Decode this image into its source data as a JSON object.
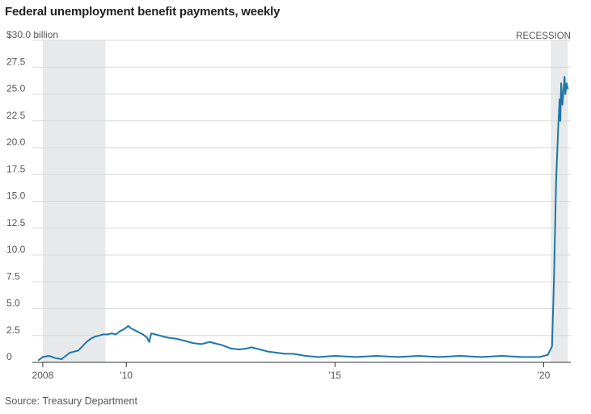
{
  "title": "Federal unemployment benefit payments, weekly",
  "source": "Source: Treasury Department",
  "chart_data": {
    "type": "line",
    "title": "Federal unemployment benefit payments, weekly",
    "unit_label": "$30.0 billion",
    "y_ticks": [
      0,
      2.5,
      5.0,
      7.5,
      10.0,
      12.5,
      15.0,
      17.5,
      20.0,
      22.5,
      25.0,
      27.5,
      30.0
    ],
    "y_tick_labels": [
      "0",
      "2.5",
      "5.0",
      "7.5",
      "10.0",
      "12.5",
      "15.0",
      "17.5",
      "20.0",
      "22.5",
      "25.0",
      "27.5",
      "$30.0 billion"
    ],
    "ylim": [
      0,
      30
    ],
    "xlim": [
      2007.75,
      2020.65
    ],
    "x_ticks": [
      2008,
      2010,
      2015,
      2020
    ],
    "x_tick_labels": [
      "2008",
      "'10",
      "'15",
      "'20"
    ],
    "grid": true,
    "recession_label": "RECESSION",
    "recessions": [
      [
        2008.0,
        2009.5
      ],
      [
        2020.17,
        2020.58
      ]
    ],
    "series": [
      {
        "color": "#1f77a6",
        "x": [
          2007.9,
          2008.0,
          2008.15,
          2008.3,
          2008.45,
          2008.55,
          2008.65,
          2008.75,
          2008.85,
          2008.95,
          2009.05,
          2009.15,
          2009.25,
          2009.35,
          2009.45,
          2009.55,
          2009.65,
          2009.75,
          2009.85,
          2009.95,
          2010.05,
          2010.1,
          2010.2,
          2010.3,
          2010.4,
          2010.5,
          2010.55,
          2010.6,
          2010.7,
          2010.8,
          2010.9,
          2011.0,
          2011.2,
          2011.4,
          2011.6,
          2011.8,
          2012.0,
          2012.1,
          2012.3,
          2012.5,
          2012.7,
          2012.9,
          2013.0,
          2013.2,
          2013.4,
          2013.6,
          2013.8,
          2014.0,
          2014.3,
          2014.6,
          2015.0,
          2015.5,
          2016.0,
          2016.5,
          2017.0,
          2017.5,
          2018.0,
          2018.5,
          2019.0,
          2019.5,
          2019.9,
          2020.1,
          2020.2,
          2020.25,
          2020.3,
          2020.35,
          2020.38,
          2020.4,
          2020.42,
          2020.45,
          2020.48,
          2020.5,
          2020.52,
          2020.55,
          2020.58
        ],
        "values": [
          0.2,
          0.5,
          0.6,
          0.4,
          0.3,
          0.6,
          0.9,
          1.0,
          1.1,
          1.5,
          1.9,
          2.2,
          2.4,
          2.5,
          2.6,
          2.6,
          2.7,
          2.6,
          2.9,
          3.1,
          3.4,
          3.2,
          3.0,
          2.8,
          2.6,
          2.3,
          1.9,
          2.7,
          2.6,
          2.5,
          2.4,
          2.3,
          2.2,
          2.0,
          1.8,
          1.7,
          1.9,
          1.8,
          1.6,
          1.3,
          1.2,
          1.3,
          1.4,
          1.2,
          1.0,
          0.9,
          0.8,
          0.8,
          0.6,
          0.5,
          0.6,
          0.5,
          0.6,
          0.5,
          0.6,
          0.5,
          0.6,
          0.5,
          0.6,
          0.5,
          0.5,
          0.7,
          1.5,
          8.0,
          17.0,
          22.0,
          24.5,
          22.5,
          26.0,
          24.0,
          25.5,
          26.6,
          25.0,
          26.0,
          25.5
        ]
      }
    ]
  }
}
